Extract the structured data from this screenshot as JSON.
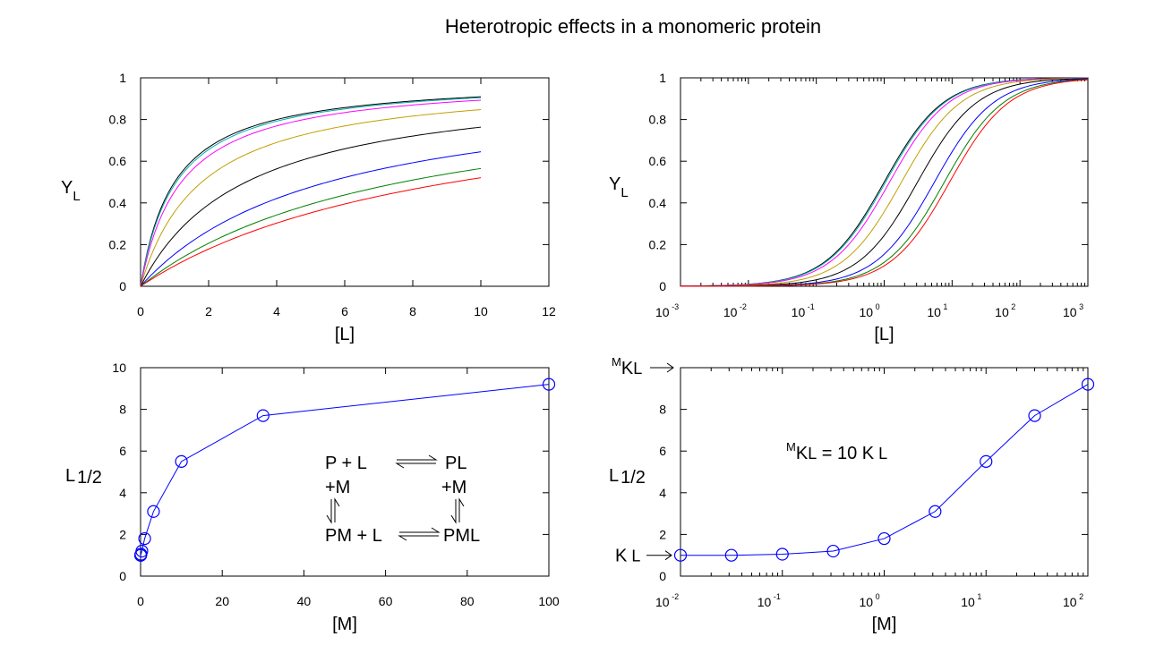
{
  "title": "Heterotropic effects in a monomeric protein",
  "colors": {
    "curves": [
      "#000000",
      "#00b0b0",
      "#ff00ff",
      "#c0a000",
      "#000000",
      "#0000ff",
      "#008000",
      "#ff0000"
    ],
    "markers": "#0000ff"
  },
  "chart_data": [
    {
      "id": "top-left",
      "type": "line",
      "xlabel": "[L]",
      "ylabel": "Y",
      "ylabel_sub": "L",
      "xlim": [
        0,
        12
      ],
      "ylim": [
        0,
        1
      ],
      "xticks": [
        "0",
        "2",
        "4",
        "6",
        "8",
        "10",
        "12"
      ],
      "yticks": [
        "0",
        "0.2",
        "0.4",
        "0.6",
        "0.8",
        "1"
      ],
      "x_range": [
        0,
        10
      ],
      "model": "Y = L / (L + L_half)",
      "L_half": [
        1.0,
        1.05,
        1.2,
        1.8,
        3.1,
        5.5,
        7.7,
        9.2
      ]
    },
    {
      "id": "top-right",
      "type": "line",
      "x_scale": "log",
      "xlabel": "[L]",
      "ylabel": "Y",
      "ylabel_sub": "L",
      "xlim": [
        0.001,
        1000
      ],
      "ylim": [
        0,
        1
      ],
      "xticks": [
        {
          "base": "10",
          "exp": "-3"
        },
        {
          "base": "10",
          "exp": "-2"
        },
        {
          "base": "10",
          "exp": "-1"
        },
        {
          "base": "10",
          "exp": "0"
        },
        {
          "base": "10",
          "exp": "1"
        },
        {
          "base": "10",
          "exp": "2"
        },
        {
          "base": "10",
          "exp": "3"
        }
      ],
      "yticks": [
        "0",
        "0.2",
        "0.4",
        "0.6",
        "0.8",
        "1"
      ],
      "model": "Y = L / (L + L_half)",
      "L_half": [
        1.0,
        1.05,
        1.2,
        1.8,
        3.1,
        5.5,
        7.7,
        9.2
      ]
    },
    {
      "id": "bottom-left",
      "type": "line",
      "xlabel": "[M]",
      "ylabel": "L",
      "ylabel_sub": "1/2",
      "xlim": [
        0,
        100
      ],
      "ylim": [
        0,
        10
      ],
      "xticks": [
        "0",
        "20",
        "40",
        "60",
        "80",
        "100"
      ],
      "yticks": [
        "0",
        "2",
        "4",
        "6",
        "8",
        "10"
      ],
      "x": [
        0.01,
        0.0316,
        0.1,
        0.316,
        1,
        3.16,
        10,
        30,
        100
      ],
      "y": [
        1.0,
        1.0,
        1.05,
        1.2,
        1.8,
        3.1,
        5.5,
        7.7,
        9.2
      ],
      "scheme": {
        "row1_left": "P + L",
        "row1_right": "PL",
        "plus_m_left": "+M",
        "plus_m_right": "+M",
        "row2_left": "PM + L",
        "row2_right": "PML"
      }
    },
    {
      "id": "bottom-right",
      "type": "line",
      "x_scale": "log",
      "xlabel": "[M]",
      "ylabel": "L",
      "ylabel_sub": "1/2",
      "xlim": [
        0.01,
        100
      ],
      "ylim": [
        0,
        10
      ],
      "xticks": [
        {
          "base": "10",
          "exp": "-2"
        },
        {
          "base": "10",
          "exp": "-1"
        },
        {
          "base": "10",
          "exp": "0"
        },
        {
          "base": "10",
          "exp": "1"
        },
        {
          "base": "10",
          "exp": "2"
        }
      ],
      "yticks": [
        "0",
        "2",
        "4",
        "6",
        "8"
      ],
      "x": [
        0.01,
        0.0316,
        0.1,
        0.316,
        1,
        3.16,
        10,
        30,
        100
      ],
      "y": [
        1.0,
        1.0,
        1.05,
        1.2,
        1.8,
        3.1,
        5.5,
        7.7,
        9.2
      ],
      "annotation": {
        "sup": "M",
        "k1": "K",
        "sub1": "L",
        "mid": "= 10 K",
        "sub2": "L"
      },
      "marker_mk": {
        "sup": "M",
        "k": "K",
        "sub": "L",
        "value": 10
      },
      "marker_k": {
        "k": "K",
        "sub": "L",
        "value": 1
      }
    }
  ]
}
